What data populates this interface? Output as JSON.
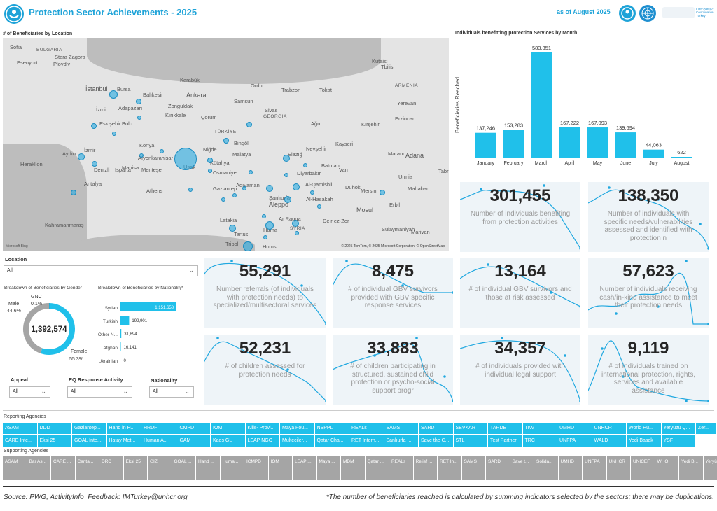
{
  "header": {
    "title": "Protection Sector Achievements - 2025",
    "as_of": "as of August 2025",
    "agency_text": "Inter-Agency Coordination Turkey"
  },
  "map": {
    "title": "# of Beneficiaries by Location",
    "copyright": "© 2025 TomTom, © 2025 Microsoft Corporation, © OpenStreetMap",
    "provider": "Microsoft Bing",
    "labels": [
      "Sofia",
      "BULGARIA",
      "Stara Zagora",
      "Plovdiv",
      "Esenyurt",
      "İstanbul",
      "Bursa",
      "İzmit",
      "Adapazarı",
      "Balıkesir",
      "Eskişehir",
      "Bolu",
      "Zonguldak",
      "Karabük",
      "Ankara",
      "Kırıkkale",
      "Çorum",
      "Samsun",
      "Ordu",
      "Trabzon",
      "Tokat",
      "Sivas",
      "GEORGIA",
      "Tbilisi",
      "ARMENIA",
      "Yerevan",
      "Erzincan",
      "Ağrı",
      "Kırşehir",
      "TÜRKİYE",
      "Bingöl",
      "Kayseri",
      "Malatya",
      "Elazığ",
      "Nevşehir",
      "Niğde",
      "Kütahya",
      "Afyonkarahisar",
      "Konya",
      "Uşak",
      "Manisa",
      "İzmir",
      "Aydın",
      "Denizli",
      "Isparta",
      "Menteşe",
      "Antalya",
      "Athens",
      "Heraklion",
      "Kahramanmaraş",
      "Osmaniye",
      "Adıyaman",
      "Diyarbakır",
      "Batman",
      "Van",
      "Marand",
      "Adana",
      "Gaziantep",
      "Şanlıurfa",
      "Al-Qamishli",
      "Duhok",
      "Mersin",
      "Aleppo",
      "Al-Hasakah",
      "Mosul",
      "Erbil",
      "Latakia",
      "Ar Raqqa",
      "Deir ez-Zor",
      "SYRIA",
      "Hama",
      "Sulaymaniyah",
      "Tartus",
      "Tripoli",
      "Homs",
      "Kutaisi",
      "Urmia",
      "Mahabad",
      "Tabriz",
      "Marivan"
    ]
  },
  "bar_chart": {
    "title": "Individuals benefitting protection Services by Month",
    "ylabel": "Beneficiaries Reached"
  },
  "chart_data": {
    "type": "bar",
    "categories": [
      "January",
      "February",
      "March",
      "April",
      "May",
      "June",
      "July",
      "August"
    ],
    "values": [
      137246,
      153283,
      583351,
      167222,
      167093,
      139694,
      44063,
      622
    ],
    "labels": [
      "137,246",
      "153,283",
      "583,351",
      "167,222",
      "167,093",
      "139,694",
      "44,063",
      "622"
    ],
    "ylabel": "Beneficiaries Reached",
    "color": "#20c0ea"
  },
  "kpis": [
    {
      "value": "301,455",
      "desc": "Number of individuals benefiting from protection activities"
    },
    {
      "value": "138,350",
      "desc": "Number of individuals with specific needs/vulnerabilities assessed and identified with protection n"
    },
    {
      "value": "55,291",
      "desc": "Number referrals (of individuals with protection needs) to specialized/multisectoral services"
    },
    {
      "value": "8,475",
      "desc": "# of individual GBV survivors provided with GBV specific response services"
    },
    {
      "value": "13,164",
      "desc": "# of individual GBV survivors and those at risk assessed"
    },
    {
      "value": "57,623",
      "desc": "Number of individuals receiving cash/in-kind assistance to meet their protection needs"
    },
    {
      "value": "52,231",
      "desc": "# of children assessed for protection needs"
    },
    {
      "value": "33,883",
      "desc": "# of children participating in structured, sustained child protection or psycho-social support progr"
    },
    {
      "value": "34,357",
      "desc": "# of individuals provided with individual legal support"
    },
    {
      "value": "9,119",
      "desc": "# of individuals trained on international protection, rights, services and available assistance"
    }
  ],
  "filters": {
    "location_label": "Location",
    "location_value": "All",
    "appeal_label": "Appeal",
    "appeal_value": "All",
    "eq_label": "EQ Response Activity",
    "eq_value": "All",
    "nat_label": "Nationality",
    "nat_value": "All"
  },
  "gender": {
    "title": "Breakdown of Beneficiaries by Gender",
    "total": "1,392,574",
    "male_label": "Male",
    "male_pct": "44.6%",
    "female_label": "Female",
    "female_pct": "55.3%",
    "gnc_label": "GNC",
    "gnc_pct": "0.1%",
    "male_frac": 0.446,
    "female_frac": 0.553,
    "gnc_frac": 0.001,
    "male_color": "#a5a5a5",
    "female_color": "#20c0ea"
  },
  "nationality": {
    "title": "Breakdown of Beneficiaries by Nationality*",
    "rows": [
      {
        "label": "Syrian",
        "value": 1151658,
        "text": "1,151,658"
      },
      {
        "label": "Turkish",
        "value": 192901,
        "text": "192,901"
      },
      {
        "label": "Other N...",
        "value": 31894,
        "text": "31,894"
      },
      {
        "label": "Afghan",
        "value": 16141,
        "text": "16,141"
      },
      {
        "label": "Ukrainian",
        "value": 0,
        "text": "0"
      }
    ]
  },
  "reporting": {
    "title": "Reporting Agencies",
    "row1": [
      "ASAM",
      "DDD",
      "Gaziantep...",
      "Hand in H...",
      "HRDF",
      "ICMPD",
      "IOM",
      "Kilis- Provi...",
      "Maya Fou...",
      "NSPPL",
      "REALs",
      "SAMS",
      "SARD",
      "SEVKAR",
      "TARDE",
      "TKV",
      "UMHD",
      "UNHCR",
      "World Hu...",
      "Yeryüzü Ç...",
      "Zer..."
    ],
    "row2": [
      "CARE Inte...",
      "Eksi 25",
      "GOAL Inte...",
      "Hatay Met...",
      "Human A...",
      "IGAM",
      "Kaos GL",
      "LEAP NGO",
      "Multeciler...",
      "Qatar Cha...",
      "RET Intern...",
      "Sanlıurfa ...",
      "Save the C...",
      "STL",
      "Test Partner",
      "TRC",
      "UNFPA",
      "WALD",
      "Yedi Basak",
      "YSF"
    ]
  },
  "supporting": {
    "title": "Supporting Agencies",
    "row": [
      "ASAM",
      "Bar As...",
      "CARE ...",
      "Carita...",
      "DRC",
      "Eksi 25",
      "GIZ",
      "GOAL ...",
      "Hand ...",
      "Huma...",
      "ICMPD",
      "IOM",
      "LEAP ...",
      "Maya ...",
      "MDM",
      "Qatar ...",
      "REALs",
      "Relief ...",
      "RET In...",
      "SAMS",
      "SARD",
      "Save t...",
      "Solida...",
      "UMHD",
      "UNFPA",
      "UNHCR",
      "UNICEF",
      "WHO",
      "Yedi B...",
      "Yeryüz..."
    ]
  },
  "footer": {
    "source_label": "Source",
    "source": "PWG, ActivityInfo",
    "feedback_label": "Feedback",
    "feedback": "IMTurkey@unhcr.org",
    "note": "*The number of beneficiaries reached is calculated by summing indicators selected by the sectors; there may be duplications."
  }
}
